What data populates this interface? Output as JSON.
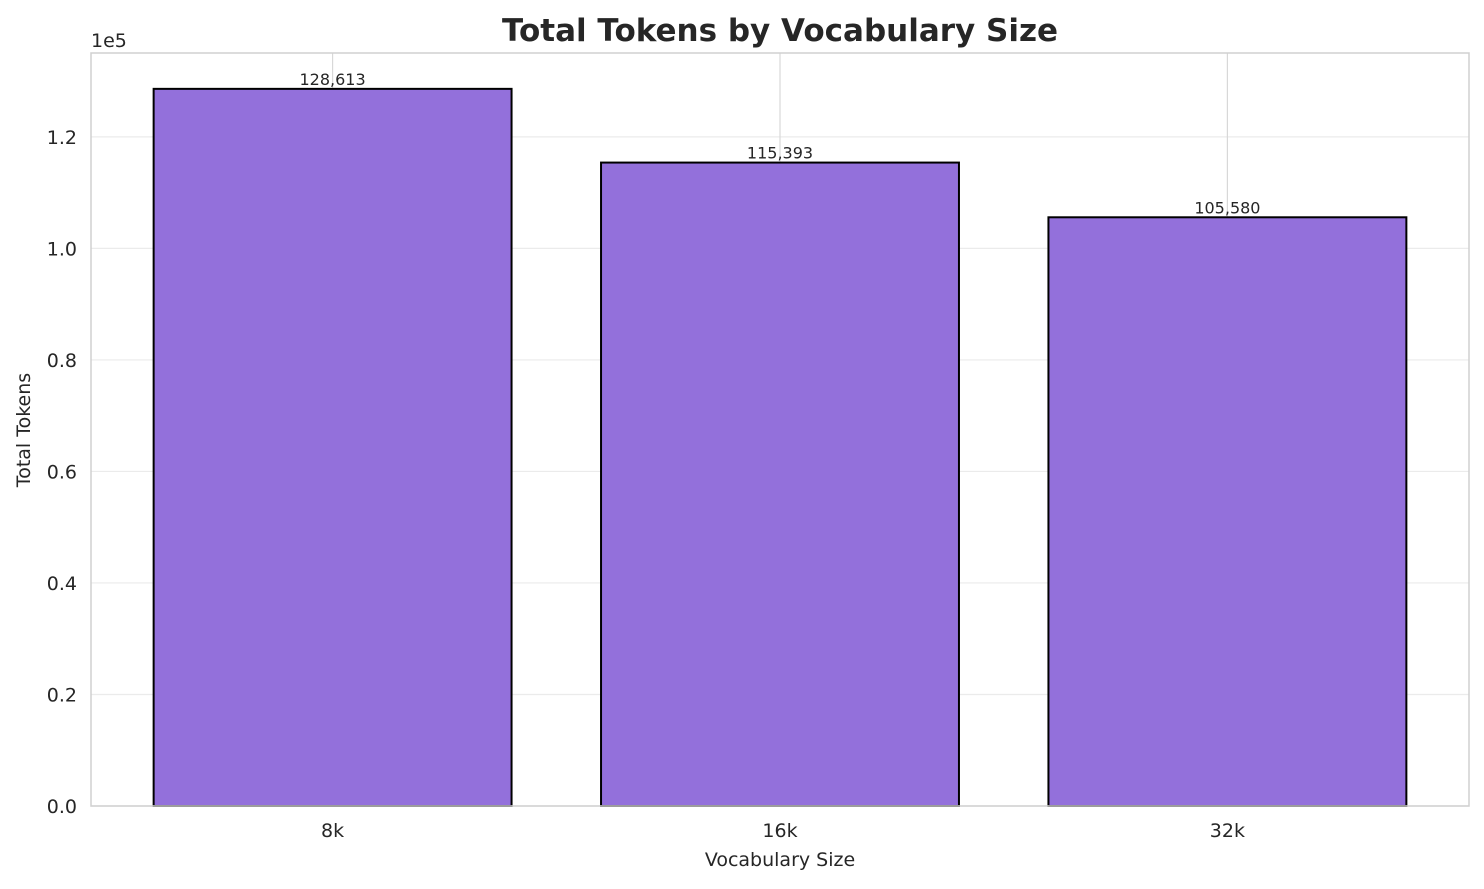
{
  "chart_data": {
    "type": "bar",
    "title": "Total Tokens by Vocabulary Size",
    "xlabel": "Vocabulary Size",
    "ylabel": "Total Tokens",
    "y_offset_label": "1e5",
    "categories": [
      "8k",
      "16k",
      "32k"
    ],
    "values": [
      128613,
      115393,
      105580
    ],
    "data_labels": [
      "128,613",
      "115,393",
      "105,580"
    ],
    "yticks": [
      0,
      20000,
      40000,
      60000,
      80000,
      100000,
      120000
    ],
    "ytick_labels": [
      "0.0",
      "0.2",
      "0.4",
      "0.6",
      "0.8",
      "1.0",
      "1.2"
    ],
    "ylim": [
      0,
      135044
    ],
    "grid": true,
    "colors": {
      "bar": "#9370DB",
      "edge": "#000000",
      "grid": "#ebebeb",
      "frame": "#d0d0d0"
    }
  }
}
